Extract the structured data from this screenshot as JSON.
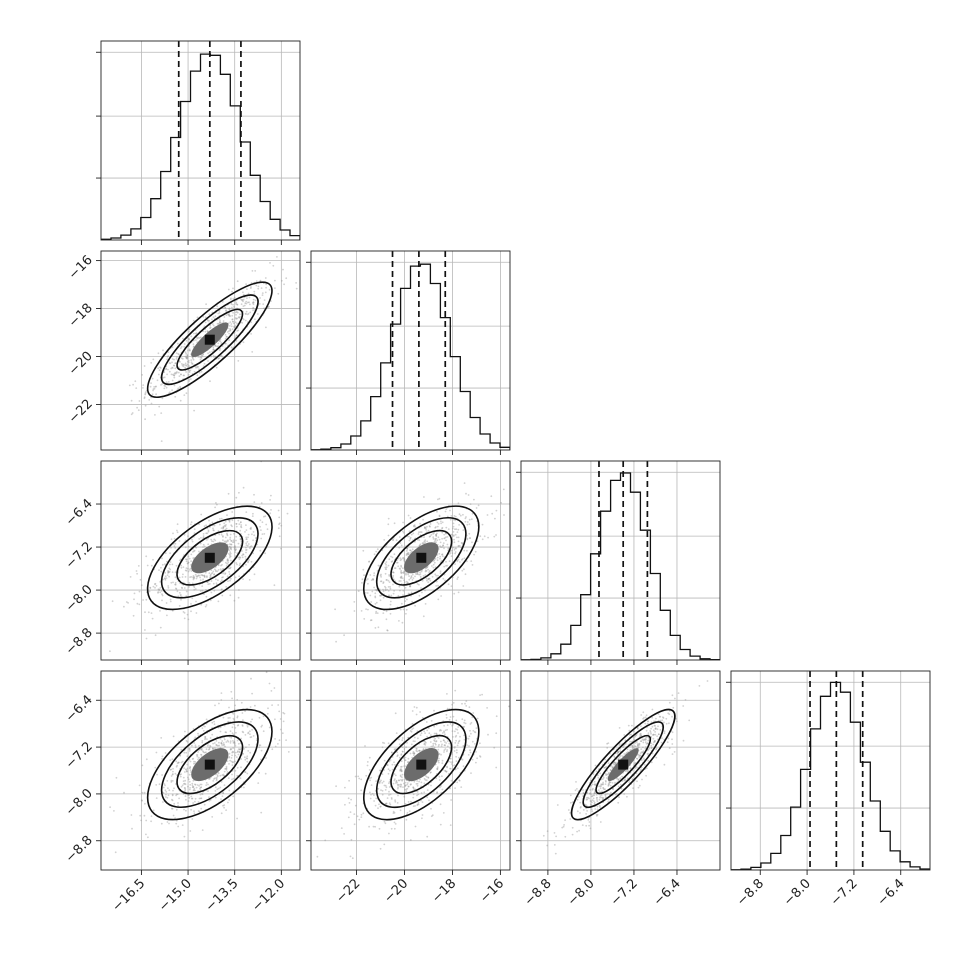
{
  "chart_data": {
    "type": "corner",
    "parameter_count": 4,
    "grid": true,
    "quantiles": [
      0.16,
      0.5,
      0.84
    ],
    "parameters": [
      {
        "mean": -14.3,
        "sd": 1.0,
        "range": [
          -17.8,
          -11.4
        ],
        "ticks": [
          -16.5,
          -15.0,
          -13.5,
          -12.0
        ],
        "tick_labels": [
          "−16.5",
          "−15.0",
          "−13.5",
          "−12.0"
        ]
      },
      {
        "mean": -19.3,
        "sd": 1.2,
        "range": [
          -23.9,
          -15.6
        ],
        "ticks": [
          -22,
          -20,
          -18,
          -16
        ],
        "tick_labels": [
          "−22",
          "−20",
          "−18",
          "−16"
        ]
      },
      {
        "mean": -7.4,
        "sd": 0.48,
        "range": [
          -9.3,
          -5.6
        ],
        "ticks": [
          -8.8,
          -8.0,
          -7.2,
          -6.4
        ],
        "tick_labels": [
          "−8.8",
          "−8.0",
          "−7.2",
          "−6.4"
        ]
      },
      {
        "mean": -7.5,
        "sd": 0.47,
        "range": [
          -9.3,
          -5.9
        ],
        "ticks": [
          -8.8,
          -8.0,
          -7.2,
          -6.4
        ],
        "tick_labels": [
          "−8.8",
          "−8.0",
          "−7.2",
          "−6.4"
        ]
      }
    ],
    "correlations": [
      [
        1.0,
        0.85,
        0.6,
        0.6
      ],
      [
        0.85,
        1.0,
        0.6,
        0.6
      ],
      [
        0.6,
        0.6,
        1.0,
        0.88
      ],
      [
        0.6,
        0.6,
        0.88,
        1.0
      ]
    ],
    "quantile_values": [
      [
        -15.3,
        -14.3,
        -13.3
      ],
      [
        -20.5,
        -19.4,
        -18.3
      ],
      [
        -7.85,
        -7.4,
        -6.95
      ],
      [
        -7.95,
        -7.5,
        -7.05
      ]
    ]
  }
}
